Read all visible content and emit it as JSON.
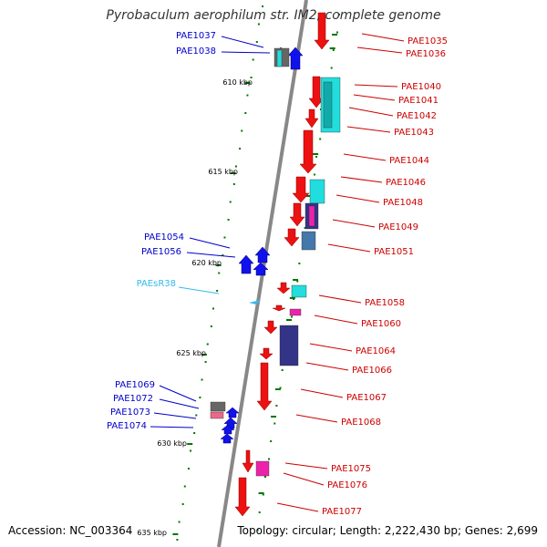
{
  "title": "Pyrobaculum aerophilum str. IM2, complete genome",
  "accession_text": "Accession: NC_003364",
  "topology_text": "Topology: circular; Length: 2,222,430 bp; Genes: 2,699",
  "colors": {
    "backbone": "#888888",
    "minus_label": "#0000cc",
    "plus_label": "#cc0000",
    "rna_label": "#33bbee",
    "tick": "#007700",
    "gene_plus": "#ee1111",
    "gene_minus": "#1111ee",
    "cyan": "#22dddd",
    "steel": "#4477aa",
    "purple": "#333388",
    "magenta": "#ee22aa",
    "gray": "#666666",
    "pink": "#ee6688"
  },
  "scale_labels": [
    {
      "text": "610 kbp",
      "kbp": 610
    },
    {
      "text": "615 kbp",
      "kbp": 615
    },
    {
      "text": "620 kbp",
      "kbp": 620
    },
    {
      "text": "625 kbp",
      "kbp": 625
    },
    {
      "text": "630 kbp",
      "kbp": 630
    },
    {
      "text": "635 kbp",
      "kbp": 635
    }
  ],
  "minus_labels": [
    "PAE1037",
    "PAE1038",
    "PAE1054",
    "PAE1056",
    "PAE1069",
    "PAE1072",
    "PAE1073",
    "PAE1074"
  ],
  "rna_labels": [
    "PAEsR38"
  ],
  "plus_labels": [
    "PAE1035",
    "PAE1036",
    "PAE1040",
    "PAE1041",
    "PAE1042",
    "PAE1043",
    "PAE1044",
    "PAE1046",
    "PAE1048",
    "PAE1049",
    "PAE1051",
    "PAE1058",
    "PAE1060",
    "PAE1064",
    "PAE1066",
    "PAE1067",
    "PAE1068",
    "PAE1075",
    "PAE1076",
    "PAE1077"
  ]
}
